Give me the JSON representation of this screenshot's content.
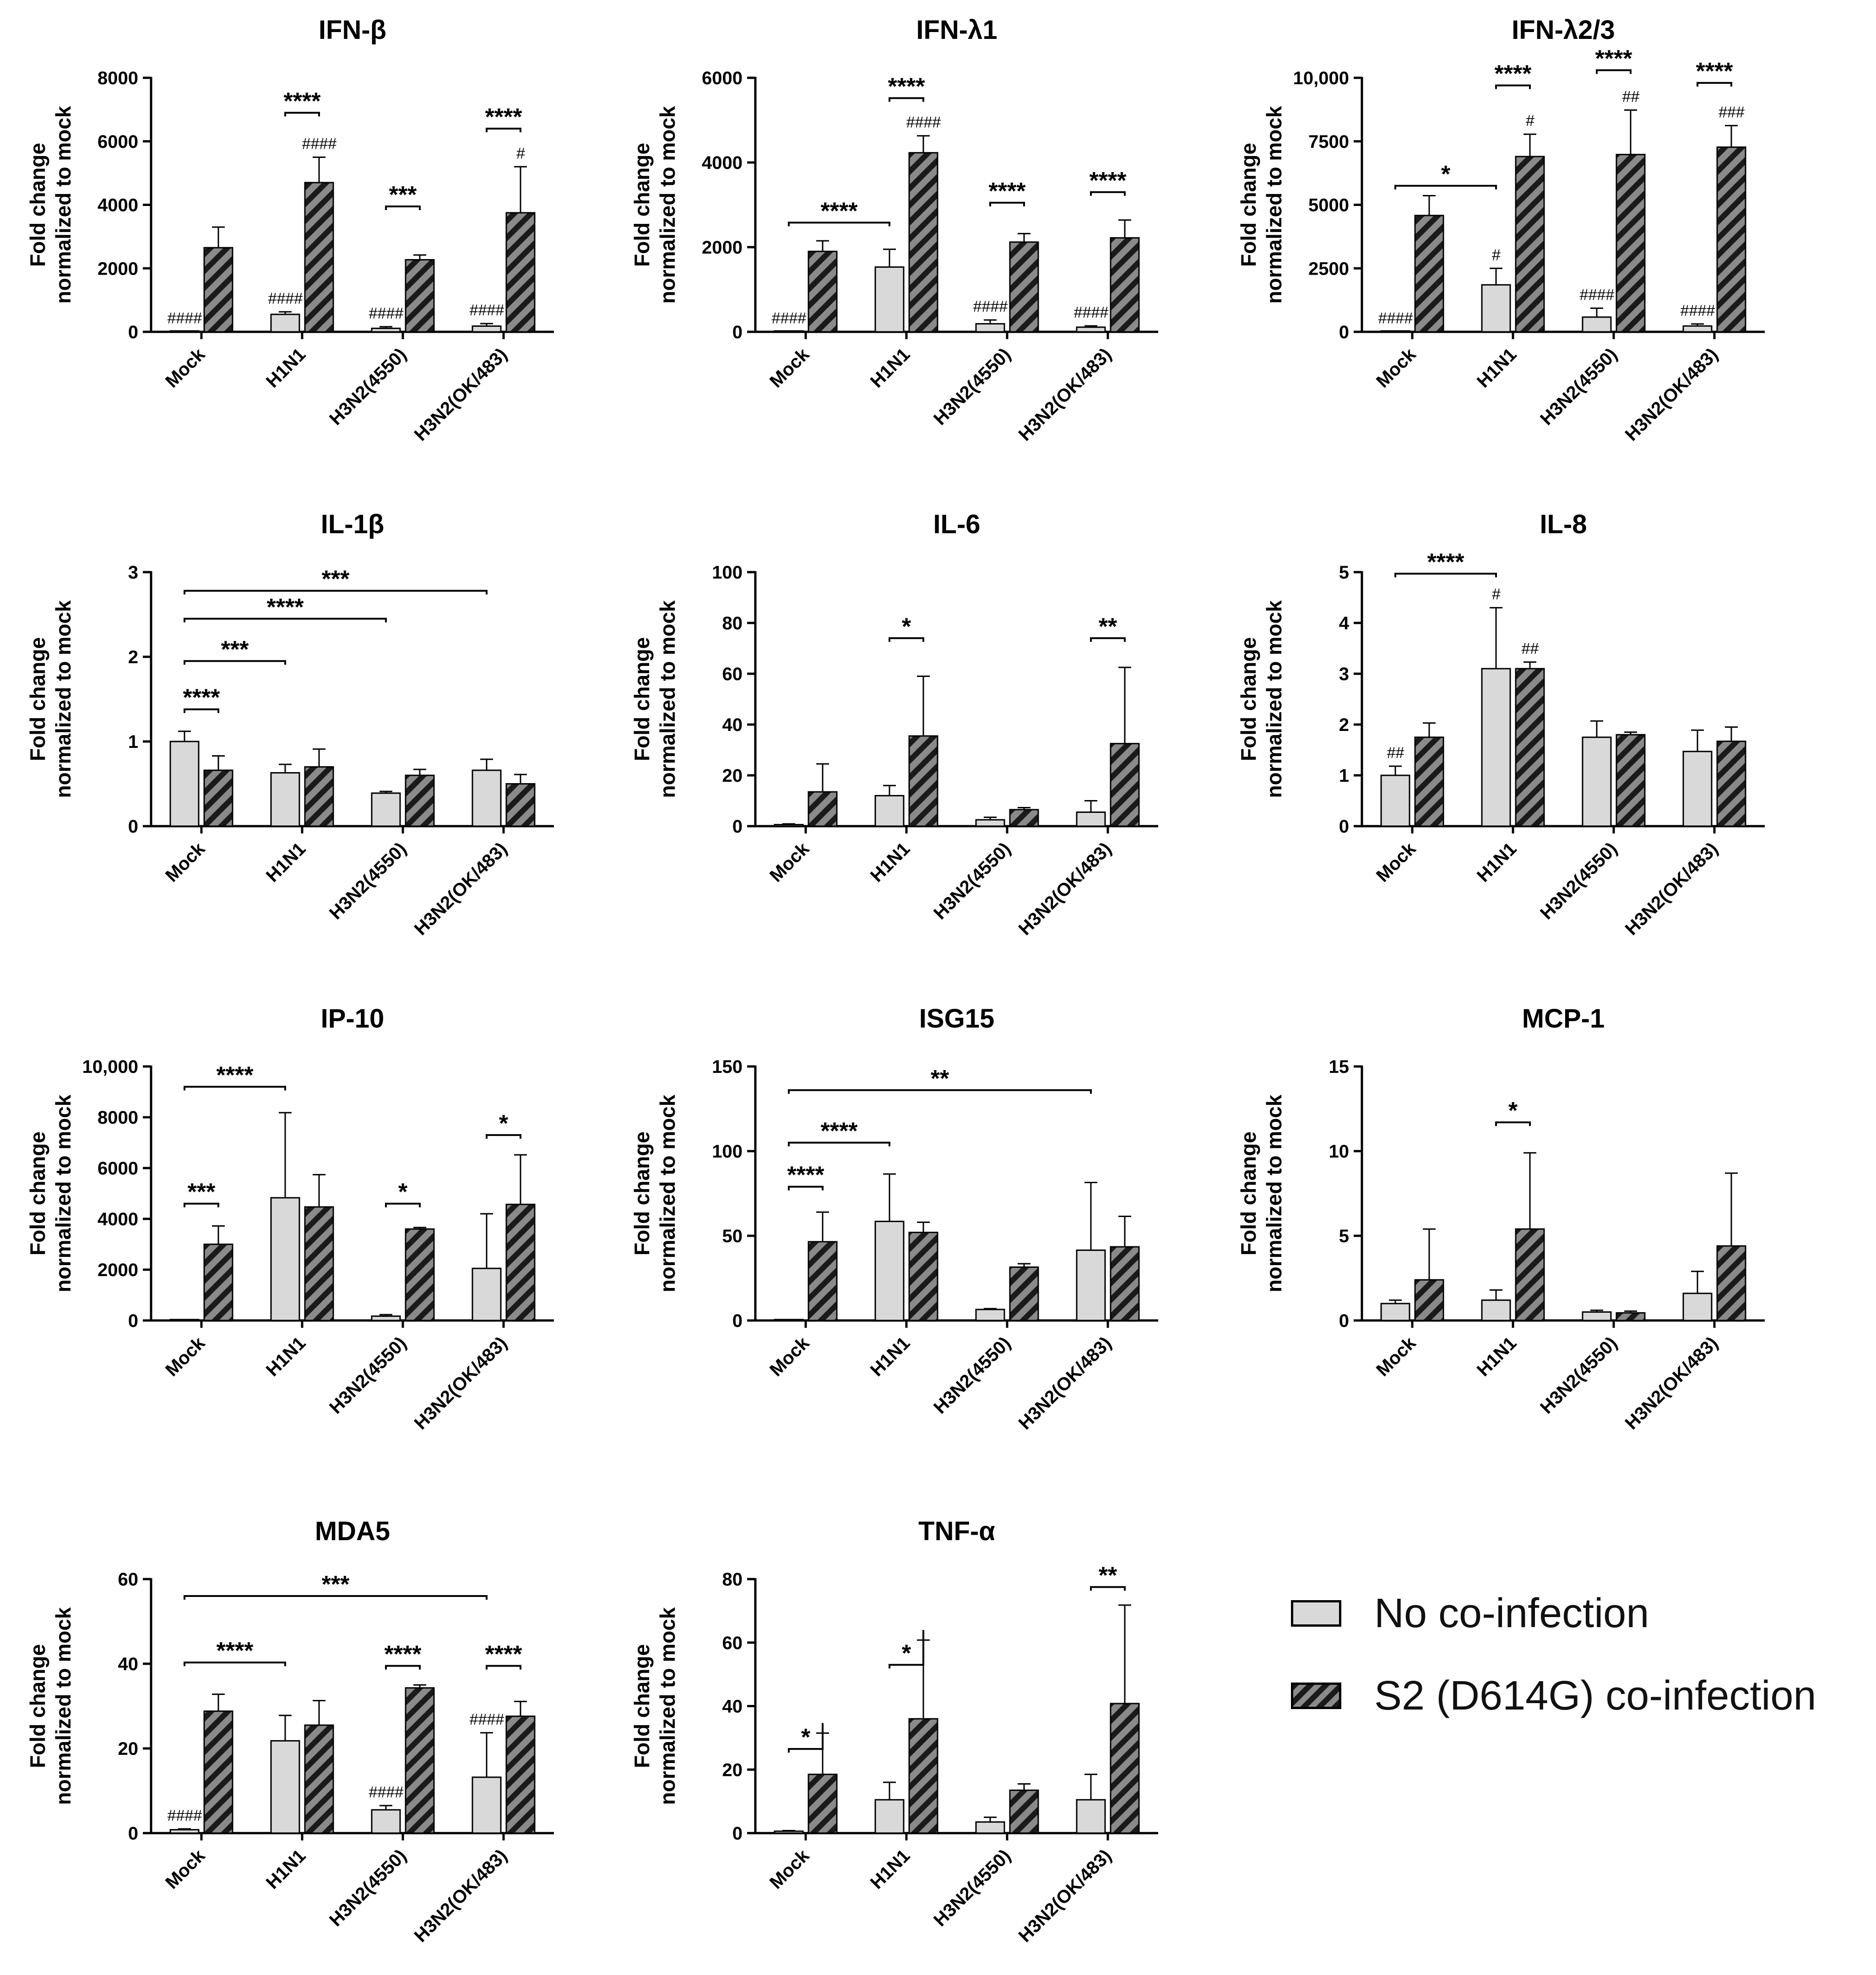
{
  "figure": {
    "ylabel": [
      "Fold change",
      "normalized to mock"
    ],
    "categories": [
      "Mock",
      "H1N1",
      "H3N2(4550)",
      "H3N2(OK/483)"
    ]
  },
  "legend": {
    "items": [
      {
        "label": "No co-infection",
        "pattern": "plain",
        "color": "#d9d9d9"
      },
      {
        "label": "S2 (D614G) co-infection",
        "pattern": "hatched",
        "color": "#8a8a8a"
      }
    ]
  },
  "colors": {
    "bar_plain": "#d9d9d9",
    "bar_hatch_light": "#8a8a8a",
    "bar_hatch_dark": "#1a1a1a",
    "ink": "#000000"
  },
  "chart_data": [
    {
      "type": "bar",
      "title": "IFN-β",
      "categories": [
        "Mock",
        "H1N1",
        "H3N2(4550)",
        "H3N2(OK/483)"
      ],
      "ylabel": "Fold change normalized to mock",
      "ylim": [
        0,
        8000
      ],
      "ticks": [
        0,
        2000,
        4000,
        6000,
        8000
      ],
      "tick_labels": [
        "0",
        "2000",
        "4000",
        "6000",
        "8000"
      ],
      "series": [
        {
          "name": "No co-infection",
          "values": [
            2,
            550,
            110,
            180
          ],
          "errors": [
            2,
            80,
            50,
            80
          ]
        },
        {
          "name": "S2 (D614G) co-infection",
          "values": [
            2650,
            4700,
            2270,
            3750
          ],
          "errors": [
            650,
            800,
            150,
            1450
          ]
        }
      ],
      "hashes": [
        {
          "cat": 0,
          "series": 0,
          "text": "####"
        },
        {
          "cat": 1,
          "series": 0,
          "text": "####"
        },
        {
          "cat": 1,
          "series": 1,
          "text": "####"
        },
        {
          "cat": 2,
          "series": 0,
          "text": "####"
        },
        {
          "cat": 3,
          "series": 0,
          "text": "####"
        },
        {
          "cat": 3,
          "series": 1,
          "text": "#"
        }
      ],
      "brackets": [
        {
          "c1": 1,
          "s1": 0,
          "c2": 1,
          "s2": 1,
          "y": 6900,
          "text": "****"
        },
        {
          "c1": 2,
          "s1": 0,
          "c2": 2,
          "s2": 1,
          "y": 3950,
          "text": "***"
        },
        {
          "c1": 3,
          "s1": 0,
          "c2": 3,
          "s2": 1,
          "y": 6400,
          "text": "****"
        }
      ]
    },
    {
      "type": "bar",
      "title": "IFN-λ1",
      "categories": [
        "Mock",
        "H1N1",
        "H3N2(4550)",
        "H3N2(OK/483)"
      ],
      "ylabel": "Fold change normalized to mock",
      "ylim": [
        0,
        6000
      ],
      "ticks": [
        0,
        2000,
        4000,
        6000
      ],
      "tick_labels": [
        "0",
        "2000",
        "4000",
        "6000"
      ],
      "series": [
        {
          "name": "No co-infection",
          "values": [
            2,
            1530,
            190,
            110
          ],
          "errors": [
            2,
            420,
            90,
            30
          ]
        },
        {
          "name": "S2 (D614G) co-infection",
          "values": [
            1900,
            4230,
            2120,
            2220
          ],
          "errors": [
            250,
            400,
            200,
            420
          ]
        }
      ],
      "hashes": [
        {
          "cat": 0,
          "series": 0,
          "text": "####"
        },
        {
          "cat": 1,
          "series": 1,
          "text": "####"
        },
        {
          "cat": 2,
          "series": 0,
          "text": "####"
        },
        {
          "cat": 3,
          "series": 0,
          "text": "####"
        }
      ],
      "brackets": [
        {
          "c1": 0,
          "s1": 0,
          "c2": 1,
          "s2": 0,
          "y": 2580,
          "text": "****"
        },
        {
          "c1": 1,
          "s1": 0,
          "c2": 1,
          "s2": 1,
          "y": 5520,
          "text": "****"
        },
        {
          "c1": 2,
          "s1": 0,
          "c2": 2,
          "s2": 1,
          "y": 3050,
          "text": "****"
        },
        {
          "c1": 3,
          "s1": 0,
          "c2": 3,
          "s2": 1,
          "y": 3300,
          "text": "****"
        }
      ]
    },
    {
      "type": "bar",
      "title": "IFN-λ2/3",
      "categories": [
        "Mock",
        "H1N1",
        "H3N2(4550)",
        "H3N2(OK/483)"
      ],
      "ylabel": "Fold change normalized to mock",
      "ylim": [
        0,
        10000
      ],
      "ticks": [
        0,
        2500,
        5000,
        7500,
        10000
      ],
      "tick_labels": [
        "0",
        "2500",
        "5000",
        "7500",
        "10,000"
      ],
      "series": [
        {
          "name": "No co-infection",
          "values": [
            5,
            1850,
            580,
            230
          ],
          "errors": [
            5,
            650,
            350,
            80
          ]
        },
        {
          "name": "S2 (D614G) co-infection",
          "values": [
            4580,
            6900,
            6980,
            7270
          ],
          "errors": [
            780,
            880,
            1750,
            850
          ]
        }
      ],
      "hashes": [
        {
          "cat": 0,
          "series": 0,
          "text": "####"
        },
        {
          "cat": 1,
          "series": 0,
          "text": "#"
        },
        {
          "cat": 1,
          "series": 1,
          "text": "#"
        },
        {
          "cat": 2,
          "series": 0,
          "text": "####"
        },
        {
          "cat": 2,
          "series": 1,
          "text": "##"
        },
        {
          "cat": 3,
          "series": 0,
          "text": "####"
        },
        {
          "cat": 3,
          "series": 1,
          "text": "###"
        }
      ],
      "brackets": [
        {
          "c1": 0,
          "s1": 0,
          "c2": 1,
          "s2": 0,
          "y": 5750,
          "text": "*"
        },
        {
          "c1": 1,
          "s1": 0,
          "c2": 1,
          "s2": 1,
          "y": 9700,
          "text": "****"
        },
        {
          "c1": 2,
          "s1": 0,
          "c2": 2,
          "s2": 1,
          "y": 10300,
          "text": "****"
        },
        {
          "c1": 3,
          "s1": 0,
          "c2": 3,
          "s2": 1,
          "y": 9800,
          "text": "****"
        }
      ]
    },
    {
      "type": "bar",
      "title": "IL-1β",
      "categories": [
        "Mock",
        "H1N1",
        "H3N2(4550)",
        "H3N2(OK/483)"
      ],
      "ylabel": "Fold change normalized to mock",
      "ylim": [
        0,
        3
      ],
      "ticks": [
        0,
        1,
        2,
        3
      ],
      "tick_labels": [
        "0",
        "1",
        "2",
        "3"
      ],
      "series": [
        {
          "name": "No co-infection",
          "values": [
            1.0,
            0.63,
            0.39,
            0.66
          ],
          "errors": [
            0.12,
            0.1,
            0.02,
            0.13
          ]
        },
        {
          "name": "S2 (D614G) co-infection",
          "values": [
            0.66,
            0.7,
            0.6,
            0.5
          ],
          "errors": [
            0.17,
            0.21,
            0.07,
            0.11
          ]
        }
      ],
      "hashes": [],
      "brackets": [
        {
          "c1": 0,
          "s1": 0,
          "c2": 0,
          "s2": 1,
          "y": 1.38,
          "text": "****"
        },
        {
          "c1": 0,
          "s1": 0,
          "c2": 1,
          "s2": 0,
          "y": 1.95,
          "text": "***"
        },
        {
          "c1": 0,
          "s1": 0,
          "c2": 2,
          "s2": 0,
          "y": 2.45,
          "text": "****"
        },
        {
          "c1": 0,
          "s1": 0,
          "c2": 3,
          "s2": 0,
          "y": 2.78,
          "text": "***"
        }
      ]
    },
    {
      "type": "bar",
      "title": "IL-6",
      "categories": [
        "Mock",
        "H1N1",
        "H3N2(4550)",
        "H3N2(OK/483)"
      ],
      "ylabel": "Fold change normalized to mock",
      "ylim": [
        0,
        100
      ],
      "ticks": [
        0,
        20,
        40,
        60,
        80,
        100
      ],
      "tick_labels": [
        "0",
        "20",
        "40",
        "60",
        "80",
        "100"
      ],
      "series": [
        {
          "name": "No co-infection",
          "values": [
            0.6,
            12,
            2.5,
            5.5
          ],
          "errors": [
            0.3,
            4,
            1,
            4.5
          ]
        },
        {
          "name": "S2 (D614G) co-infection",
          "values": [
            13.5,
            35.5,
            6.5,
            32.5
          ],
          "errors": [
            11,
            23.5,
            0.8,
            30
          ]
        }
      ],
      "hashes": [],
      "brackets": [
        {
          "c1": 1,
          "s1": 0,
          "c2": 1,
          "s2": 1,
          "y": 74,
          "text": "*"
        },
        {
          "c1": 3,
          "s1": 0,
          "c2": 3,
          "s2": 1,
          "y": 74,
          "text": "**"
        }
      ]
    },
    {
      "type": "bar",
      "title": "IL-8",
      "categories": [
        "Mock",
        "H1N1",
        "H3N2(4550)",
        "H3N2(OK/483)"
      ],
      "ylabel": "Fold change normalized to mock",
      "ylim": [
        0,
        5
      ],
      "ticks": [
        0,
        1,
        2,
        3,
        4,
        5
      ],
      "tick_labels": [
        "0",
        "1",
        "2",
        "3",
        "4",
        "5"
      ],
      "series": [
        {
          "name": "No co-infection",
          "values": [
            1.0,
            3.1,
            1.75,
            1.47
          ],
          "errors": [
            0.18,
            1.2,
            0.32,
            0.42
          ]
        },
        {
          "name": "S2 (D614G) co-infection",
          "values": [
            1.75,
            3.1,
            1.8,
            1.67
          ],
          "errors": [
            0.28,
            0.13,
            0.05,
            0.28
          ]
        }
      ],
      "hashes": [
        {
          "cat": 0,
          "series": 0,
          "text": "##"
        },
        {
          "cat": 1,
          "series": 0,
          "text": "#"
        },
        {
          "cat": 1,
          "series": 1,
          "text": "##"
        }
      ],
      "brackets": [
        {
          "c1": 0,
          "s1": 0,
          "c2": 1,
          "s2": 0,
          "y": 4.97,
          "text": "****"
        }
      ]
    },
    {
      "type": "bar",
      "title": "IP-10",
      "categories": [
        "Mock",
        "H1N1",
        "H3N2(4550)",
        "H3N2(OK/483)"
      ],
      "ylabel": "Fold change normalized to mock",
      "ylim": [
        0,
        10000
      ],
      "ticks": [
        0,
        2000,
        4000,
        6000,
        8000,
        10000
      ],
      "tick_labels": [
        "0",
        "2000",
        "4000",
        "6000",
        "8000",
        "10,000"
      ],
      "series": [
        {
          "name": "No co-infection",
          "values": [
            5,
            4830,
            170,
            2050
          ],
          "errors": [
            5,
            3350,
            60,
            2150
          ]
        },
        {
          "name": "S2 (D614G) co-infection",
          "values": [
            3000,
            4470,
            3600,
            4570
          ],
          "errors": [
            720,
            1270,
            60,
            1950
          ]
        }
      ],
      "hashes": [],
      "brackets": [
        {
          "c1": 0,
          "s1": 0,
          "c2": 0,
          "s2": 1,
          "y": 4600,
          "text": "***"
        },
        {
          "c1": 0,
          "s1": 0,
          "c2": 1,
          "s2": 0,
          "y": 9200,
          "text": "****"
        },
        {
          "c1": 2,
          "s1": 0,
          "c2": 2,
          "s2": 1,
          "y": 4600,
          "text": "*"
        },
        {
          "c1": 3,
          "s1": 0,
          "c2": 3,
          "s2": 1,
          "y": 7300,
          "text": "*"
        }
      ]
    },
    {
      "type": "bar",
      "title": "ISG15",
      "categories": [
        "Mock",
        "H1N1",
        "H3N2(4550)",
        "H3N2(OK/483)"
      ],
      "ylabel": "Fold change normalized to mock",
      "ylim": [
        0,
        150
      ],
      "ticks": [
        0,
        50,
        100,
        150
      ],
      "tick_labels": [
        "0",
        "50",
        "100",
        "150"
      ],
      "series": [
        {
          "name": "No co-infection",
          "values": [
            0.3,
            58.5,
            6.5,
            41.5
          ],
          "errors": [
            0.2,
            28,
            0.5,
            40
          ]
        },
        {
          "name": "S2 (D614G) co-infection",
          "values": [
            46.5,
            52,
            31.5,
            43.5
          ],
          "errors": [
            17.5,
            6,
            2,
            18
          ]
        }
      ],
      "hashes": [],
      "brackets": [
        {
          "c1": 0,
          "s1": 0,
          "c2": 0,
          "s2": 1,
          "y": 79,
          "text": "****"
        },
        {
          "c1": 0,
          "s1": 0,
          "c2": 1,
          "s2": 0,
          "y": 105,
          "text": "****"
        },
        {
          "c1": 0,
          "s1": 0,
          "c2": 3,
          "s2": 0,
          "y": 136,
          "text": "**"
        }
      ]
    },
    {
      "type": "bar",
      "title": "MCP-1",
      "categories": [
        "Mock",
        "H1N1",
        "H3N2(4550)",
        "H3N2(OK/483)"
      ],
      "ylabel": "Fold change normalized to mock",
      "ylim": [
        0,
        15
      ],
      "ticks": [
        0,
        5,
        10,
        15
      ],
      "tick_labels": [
        "0",
        "5",
        "10",
        "15"
      ],
      "series": [
        {
          "name": "No co-infection",
          "values": [
            1.0,
            1.2,
            0.5,
            1.6
          ],
          "errors": [
            0.2,
            0.6,
            0.1,
            1.3
          ]
        },
        {
          "name": "S2 (D614G) co-infection",
          "values": [
            2.4,
            5.4,
            0.45,
            4.4
          ],
          "errors": [
            3.0,
            4.5,
            0.1,
            4.3
          ]
        }
      ],
      "hashes": [],
      "brackets": [
        {
          "c1": 1,
          "s1": 0,
          "c2": 1,
          "s2": 1,
          "y": 11.7,
          "text": "*"
        }
      ]
    },
    {
      "type": "bar",
      "title": "MDA5",
      "categories": [
        "Mock",
        "H1N1",
        "H3N2(4550)",
        "H3N2(OK/483)"
      ],
      "ylabel": "Fold change normalized to mock",
      "ylim": [
        0,
        60
      ],
      "ticks": [
        0,
        20,
        40,
        60
      ],
      "tick_labels": [
        "0",
        "20",
        "40",
        "60"
      ],
      "series": [
        {
          "name": "No co-infection",
          "values": [
            0.8,
            21.8,
            5.5,
            13.2
          ],
          "errors": [
            0.2,
            6,
            1,
            10.5
          ]
        },
        {
          "name": "S2 (D614G) co-infection",
          "values": [
            28.8,
            25.5,
            34.3,
            27.6
          ],
          "errors": [
            4,
            5.8,
            0.7,
            3.5
          ]
        }
      ],
      "hashes": [
        {
          "cat": 0,
          "series": 0,
          "text": "####"
        },
        {
          "cat": 2,
          "series": 0,
          "text": "####"
        },
        {
          "cat": 3,
          "series": 0,
          "text": "####"
        }
      ],
      "brackets": [
        {
          "c1": 0,
          "s1": 0,
          "c2": 3,
          "s2": 0,
          "y": 56,
          "text": "***"
        },
        {
          "c1": 0,
          "s1": 0,
          "c2": 1,
          "s2": 0,
          "y": 40.3,
          "text": "****"
        },
        {
          "c1": 2,
          "s1": 0,
          "c2": 2,
          "s2": 1,
          "y": 39.5,
          "text": "****"
        },
        {
          "c1": 3,
          "s1": 0,
          "c2": 3,
          "s2": 1,
          "y": 39.5,
          "text": "****"
        }
      ]
    },
    {
      "type": "bar",
      "title": "TNF-α",
      "categories": [
        "Mock",
        "H1N1",
        "H3N2(4550)",
        "H3N2(OK/483)"
      ],
      "ylabel": "Fold change normalized to mock",
      "ylim": [
        0,
        80
      ],
      "ticks": [
        0,
        20,
        40,
        60,
        80
      ],
      "tick_labels": [
        "0",
        "20",
        "40",
        "60",
        "80"
      ],
      "series": [
        {
          "name": "No co-infection",
          "values": [
            0.6,
            10.5,
            3.5,
            10.5
          ],
          "errors": [
            0.2,
            5.5,
            1.5,
            8
          ]
        },
        {
          "name": "S2 (D614G) co-infection",
          "values": [
            18.5,
            36,
            13.5,
            40.8
          ],
          "errors": [
            13,
            24.8,
            2,
            31
          ]
        }
      ],
      "hashes": [],
      "brackets": [
        {
          "c1": 0,
          "s1": 0,
          "c2": 0,
          "s2": 1,
          "y": 26.5,
          "text": "*"
        },
        {
          "c1": 1,
          "s1": 0,
          "c2": 1,
          "s2": 1,
          "y": 53,
          "text": "*"
        },
        {
          "c1": 3,
          "s1": 0,
          "c2": 3,
          "s2": 1,
          "y": 77.5,
          "text": "**"
        }
      ]
    }
  ]
}
